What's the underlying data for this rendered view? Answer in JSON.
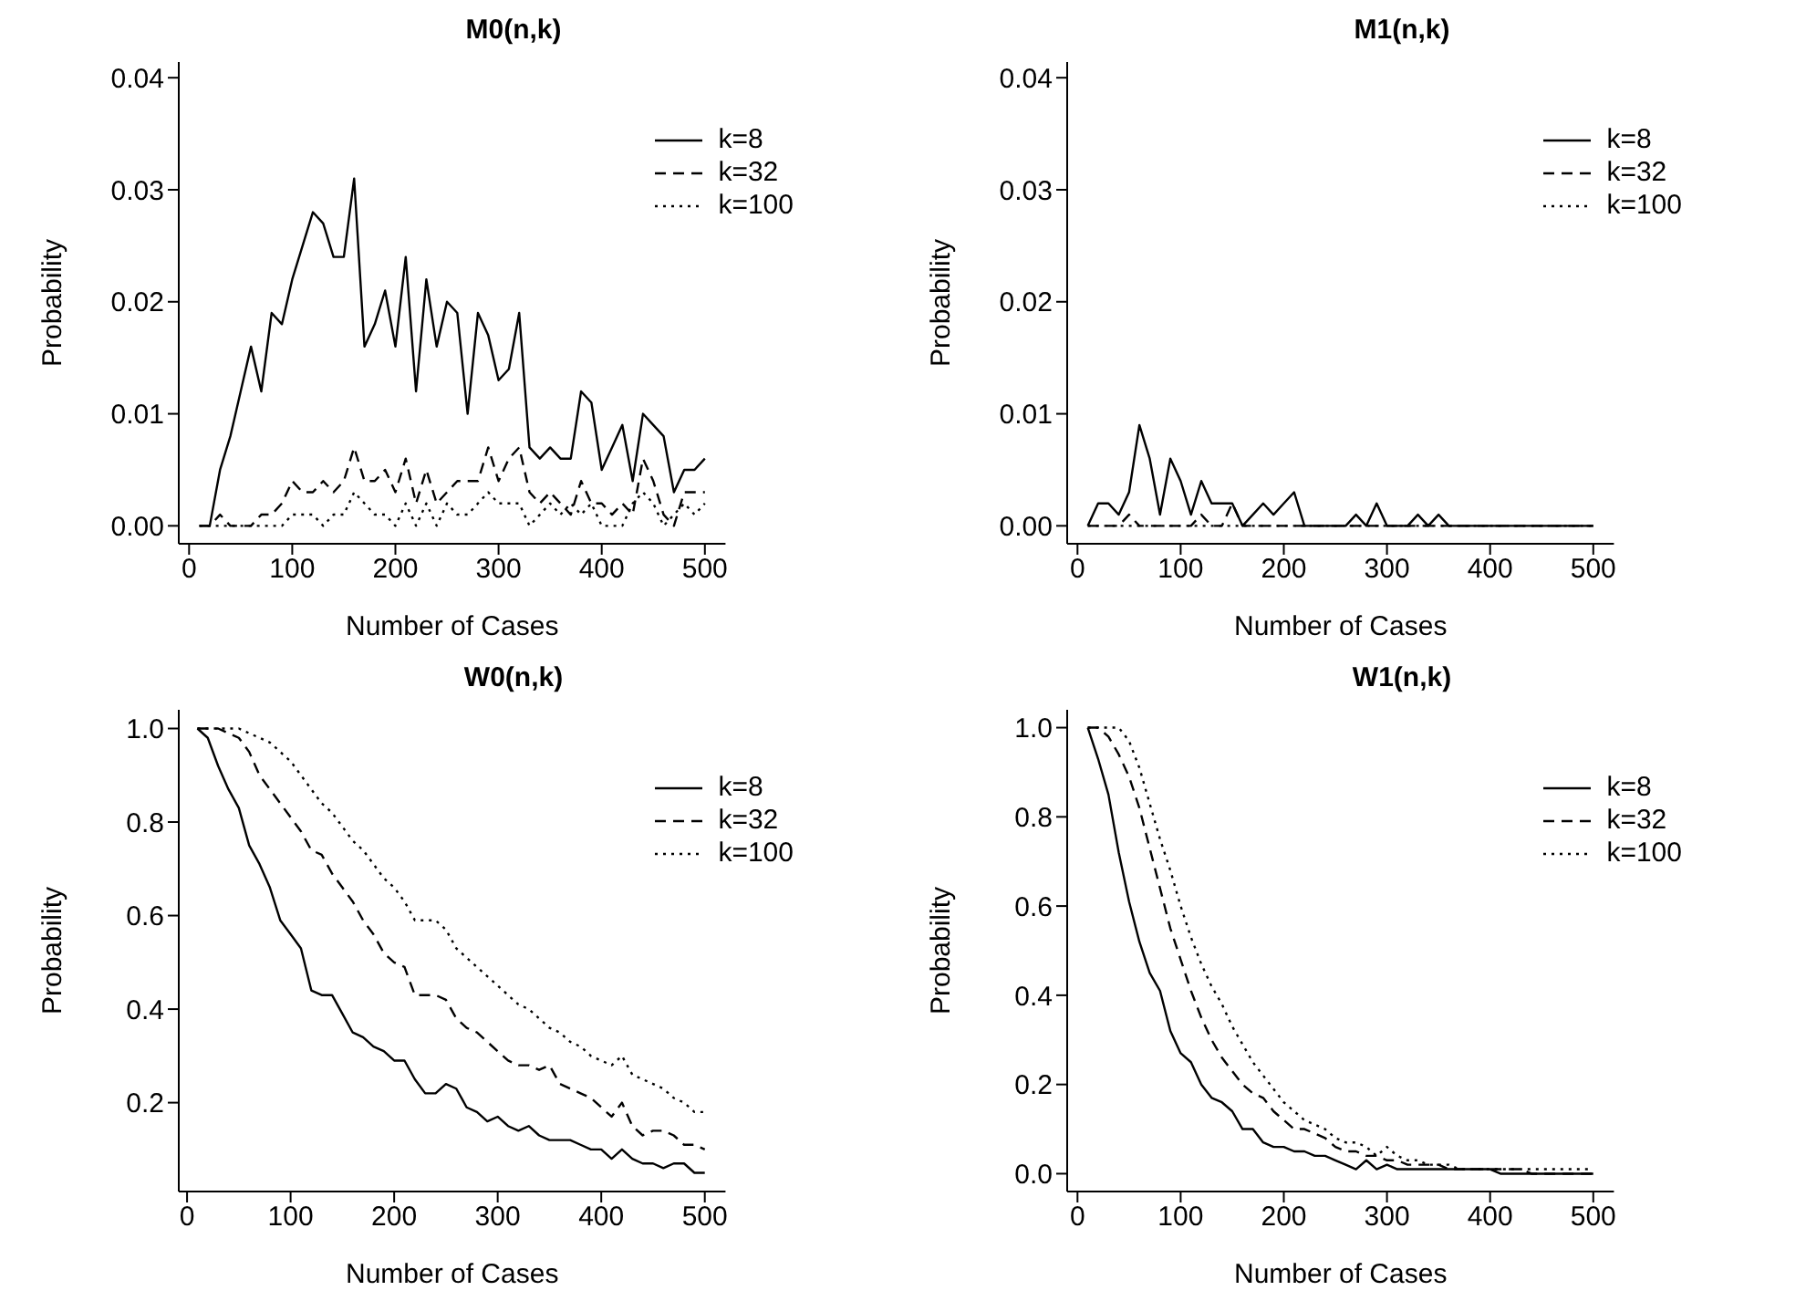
{
  "chart_data": [
    {
      "type": "line",
      "title": "M0(n,k)",
      "xlabel": "Number of Cases",
      "ylabel": "Probability",
      "x": [
        10,
        20,
        30,
        40,
        50,
        60,
        70,
        80,
        90,
        100,
        110,
        120,
        130,
        140,
        150,
        160,
        170,
        180,
        190,
        200,
        210,
        220,
        230,
        240,
        250,
        260,
        270,
        280,
        290,
        300,
        310,
        320,
        330,
        340,
        350,
        360,
        370,
        380,
        390,
        400,
        410,
        420,
        430,
        440,
        450,
        460,
        470,
        480,
        490,
        500
      ],
      "xlim": [
        -10,
        520
      ],
      "xticks": [
        0,
        100,
        200,
        300,
        400,
        500
      ],
      "ylim": [
        -0.0016,
        0.0414
      ],
      "yticks": [
        {
          "value": 0,
          "label": "0.00"
        },
        {
          "value": 0.01,
          "label": "0.01"
        },
        {
          "value": 0.02,
          "label": "0.02"
        },
        {
          "value": 0.03,
          "label": "0.03"
        },
        {
          "value": 0.04,
          "label": "0.04"
        }
      ],
      "grid": false,
      "legend": "top right",
      "marker": "none",
      "series": [
        {
          "name": "k=8",
          "color": "#000000",
          "line_style": "solid",
          "values": [
            0,
            0,
            0.005,
            0.008,
            0.012,
            0.016,
            0.012,
            0.019,
            0.018,
            0.022,
            0.025,
            0.028,
            0.027,
            0.024,
            0.024,
            0.031,
            0.016,
            0.018,
            0.021,
            0.016,
            0.024,
            0.012,
            0.022,
            0.016,
            0.02,
            0.019,
            0.01,
            0.019,
            0.017,
            0.013,
            0.014,
            0.019,
            0.007,
            0.006,
            0.007,
            0.006,
            0.006,
            0.012,
            0.011,
            0.005,
            0.007,
            0.009,
            0.004,
            0.01,
            0.009,
            0.008,
            0.003,
            0.005,
            0.005,
            0.006
          ]
        },
        {
          "name": "k=32",
          "color": "#000000",
          "line_style": "dashed",
          "values": [
            0,
            0,
            0.001,
            0,
            0,
            0,
            0.001,
            0.001,
            0.002,
            0.004,
            0.003,
            0.003,
            0.004,
            0.003,
            0.004,
            0.007,
            0.004,
            0.004,
            0.005,
            0.003,
            0.006,
            0.002,
            0.005,
            0.002,
            0.003,
            0.004,
            0.004,
            0.004,
            0.007,
            0.004,
            0.006,
            0.007,
            0.003,
            0.002,
            0.003,
            0.002,
            0.001,
            0.004,
            0.002,
            0.002,
            0.001,
            0.002,
            0.001,
            0.006,
            0.004,
            0.001,
            0,
            0.003,
            0.003,
            0.003
          ]
        },
        {
          "name": "k=100",
          "color": "#000000",
          "line_style": "dotted",
          "values": [
            0,
            0,
            0,
            0,
            0,
            0,
            0,
            0,
            0,
            0.001,
            0.001,
            0.001,
            0,
            0.001,
            0.001,
            0.003,
            0.002,
            0.001,
            0.001,
            0,
            0.002,
            0,
            0.002,
            0,
            0.002,
            0.001,
            0.001,
            0.002,
            0.003,
            0.002,
            0.002,
            0.002,
            0,
            0.001,
            0.002,
            0.001,
            0.002,
            0.001,
            0.002,
            0,
            0,
            0,
            0.002,
            0.003,
            0.002,
            0,
            0.001,
            0.002,
            0.001,
            0.002
          ]
        }
      ]
    },
    {
      "type": "line",
      "title": "M1(n,k)",
      "xlabel": "Number of Cases",
      "ylabel": "Probability",
      "x": [
        10,
        20,
        30,
        40,
        50,
        60,
        70,
        80,
        90,
        100,
        110,
        120,
        130,
        140,
        150,
        160,
        170,
        180,
        190,
        200,
        210,
        220,
        230,
        240,
        250,
        260,
        270,
        280,
        290,
        300,
        310,
        320,
        330,
        340,
        350,
        360,
        370,
        380,
        390,
        400,
        410,
        420,
        430,
        440,
        450,
        460,
        470,
        480,
        490,
        500
      ],
      "xlim": [
        -10,
        520
      ],
      "xticks": [
        0,
        100,
        200,
        300,
        400,
        500
      ],
      "ylim": [
        -0.0016,
        0.0414
      ],
      "yticks": [
        {
          "value": 0,
          "label": "0.00"
        },
        {
          "value": 0.01,
          "label": "0.01"
        },
        {
          "value": 0.02,
          "label": "0.02"
        },
        {
          "value": 0.03,
          "label": "0.03"
        },
        {
          "value": 0.04,
          "label": "0.04"
        }
      ],
      "grid": false,
      "legend": "top right",
      "marker": "none",
      "series": [
        {
          "name": "k=8",
          "color": "#000000",
          "line_style": "solid",
          "values": [
            0,
            0.002,
            0.002,
            0.001,
            0.003,
            0.009,
            0.006,
            0.001,
            0.006,
            0.004,
            0.001,
            0.004,
            0.002,
            0.002,
            0.002,
            0,
            0.001,
            0.002,
            0.001,
            0.002,
            0.003,
            0,
            0,
            0,
            0,
            0,
            0.001,
            0,
            0.002,
            0,
            0,
            0,
            0.001,
            0,
            0.001,
            0,
            0,
            0,
            0,
            0,
            0,
            0,
            0,
            0,
            0,
            0,
            0,
            0,
            0,
            0
          ]
        },
        {
          "name": "k=32",
          "color": "#000000",
          "line_style": "dashed",
          "values": [
            0,
            0,
            0,
            0,
            0.001,
            0,
            0,
            0,
            0,
            0,
            0,
            0.001,
            0,
            0,
            0.002,
            0,
            0,
            0,
            0,
            0,
            0,
            0,
            0,
            0,
            0,
            0,
            0,
            0,
            0,
            0,
            0,
            0,
            0,
            0,
            0,
            0,
            0,
            0,
            0,
            0,
            0,
            0,
            0,
            0,
            0,
            0,
            0,
            0,
            0,
            0
          ]
        },
        {
          "name": "k=100",
          "color": "#000000",
          "line_style": "dotted",
          "values": [
            0,
            0,
            0,
            0,
            0,
            0,
            0,
            0,
            0,
            0,
            0,
            0,
            0,
            0,
            0,
            0,
            0,
            0,
            0,
            0,
            0,
            0,
            0,
            0,
            0,
            0,
            0,
            0,
            0,
            0,
            0,
            0,
            0,
            0,
            0,
            0,
            0,
            0,
            0,
            0,
            0,
            0,
            0,
            0,
            0,
            0,
            0,
            0,
            0,
            0
          ]
        }
      ]
    },
    {
      "type": "line",
      "title": "W0(n,k)",
      "xlabel": "Number of Cases",
      "ylabel": "Probability",
      "x": [
        10,
        20,
        30,
        40,
        50,
        60,
        70,
        80,
        90,
        100,
        110,
        120,
        130,
        140,
        150,
        160,
        170,
        180,
        190,
        200,
        210,
        220,
        230,
        240,
        250,
        260,
        270,
        280,
        290,
        300,
        310,
        320,
        330,
        340,
        350,
        360,
        370,
        380,
        390,
        400,
        410,
        420,
        430,
        440,
        450,
        460,
        470,
        480,
        490,
        500
      ],
      "xlim": [
        -8,
        520
      ],
      "xticks": [
        0,
        100,
        200,
        300,
        400,
        500
      ],
      "ylim": [
        0.01,
        1.04
      ],
      "yticks": [
        0.2,
        0.4,
        0.6,
        0.8,
        {
          "value": 1,
          "label": "1.0"
        }
      ],
      "grid": false,
      "legend": "top right",
      "marker": "none",
      "series": [
        {
          "name": "k=8",
          "color": "#000000",
          "line_style": "solid",
          "values": [
            1.0,
            0.98,
            0.92,
            0.87,
            0.83,
            0.75,
            0.71,
            0.66,
            0.59,
            0.56,
            0.53,
            0.44,
            0.43,
            0.43,
            0.39,
            0.35,
            0.34,
            0.32,
            0.31,
            0.29,
            0.29,
            0.25,
            0.22,
            0.22,
            0.24,
            0.23,
            0.19,
            0.18,
            0.16,
            0.17,
            0.15,
            0.14,
            0.15,
            0.13,
            0.12,
            0.12,
            0.12,
            0.11,
            0.1,
            0.1,
            0.08,
            0.1,
            0.08,
            0.07,
            0.07,
            0.06,
            0.07,
            0.07,
            0.05,
            0.05
          ]
        },
        {
          "name": "k=32",
          "color": "#000000",
          "line_style": "dashed",
          "values": [
            1.0,
            1.0,
            1.0,
            0.99,
            0.98,
            0.95,
            0.9,
            0.87,
            0.84,
            0.81,
            0.78,
            0.74,
            0.73,
            0.69,
            0.66,
            0.63,
            0.59,
            0.56,
            0.52,
            0.5,
            0.49,
            0.43,
            0.43,
            0.43,
            0.42,
            0.38,
            0.36,
            0.35,
            0.33,
            0.31,
            0.29,
            0.28,
            0.28,
            0.27,
            0.28,
            0.24,
            0.23,
            0.22,
            0.21,
            0.19,
            0.17,
            0.2,
            0.15,
            0.13,
            0.14,
            0.14,
            0.13,
            0.11,
            0.11,
            0.1
          ]
        },
        {
          "name": "k=100",
          "color": "#000000",
          "line_style": "dotted",
          "values": [
            1.0,
            1.0,
            1.0,
            1.0,
            1.0,
            0.99,
            0.98,
            0.97,
            0.95,
            0.93,
            0.9,
            0.87,
            0.84,
            0.82,
            0.79,
            0.76,
            0.74,
            0.71,
            0.68,
            0.66,
            0.63,
            0.59,
            0.59,
            0.59,
            0.57,
            0.53,
            0.51,
            0.49,
            0.47,
            0.45,
            0.43,
            0.41,
            0.4,
            0.38,
            0.36,
            0.35,
            0.33,
            0.32,
            0.3,
            0.29,
            0.28,
            0.3,
            0.26,
            0.25,
            0.24,
            0.23,
            0.21,
            0.2,
            0.18,
            0.18
          ]
        }
      ]
    },
    {
      "type": "line",
      "title": "W1(n,k)",
      "xlabel": "Number of Cases",
      "ylabel": "Probability",
      "x": [
        10,
        20,
        30,
        40,
        50,
        60,
        70,
        80,
        90,
        100,
        110,
        120,
        130,
        140,
        150,
        160,
        170,
        180,
        190,
        200,
        210,
        220,
        230,
        240,
        250,
        260,
        270,
        280,
        290,
        300,
        310,
        320,
        330,
        340,
        350,
        360,
        370,
        380,
        390,
        400,
        410,
        420,
        430,
        440,
        450,
        460,
        470,
        480,
        490,
        500
      ],
      "xlim": [
        -10,
        520
      ],
      "xticks": [
        0,
        100,
        200,
        300,
        400,
        500
      ],
      "ylim": [
        -0.04,
        1.04
      ],
      "yticks": [
        {
          "value": 0,
          "label": "0.0"
        },
        0.2,
        0.4,
        0.6,
        0.8,
        {
          "value": 1,
          "label": "1.0"
        }
      ],
      "grid": false,
      "legend": "top right",
      "marker": "none",
      "series": [
        {
          "name": "k=8",
          "color": "#000000",
          "line_style": "solid",
          "values": [
            1.0,
            0.93,
            0.85,
            0.72,
            0.61,
            0.52,
            0.45,
            0.41,
            0.32,
            0.27,
            0.25,
            0.2,
            0.17,
            0.16,
            0.14,
            0.1,
            0.1,
            0.07,
            0.06,
            0.06,
            0.05,
            0.05,
            0.04,
            0.04,
            0.03,
            0.02,
            0.01,
            0.03,
            0.01,
            0.02,
            0.01,
            0.01,
            0.01,
            0.01,
            0.01,
            0.01,
            0.01,
            0.01,
            0.01,
            0.01,
            0,
            0,
            0,
            0,
            0,
            0,
            0,
            0,
            0,
            0
          ]
        },
        {
          "name": "k=32",
          "color": "#000000",
          "line_style": "dashed",
          "values": [
            1.0,
            1.0,
            0.98,
            0.94,
            0.89,
            0.82,
            0.73,
            0.64,
            0.55,
            0.48,
            0.41,
            0.35,
            0.3,
            0.26,
            0.23,
            0.2,
            0.18,
            0.17,
            0.14,
            0.12,
            0.1,
            0.1,
            0.09,
            0.08,
            0.06,
            0.05,
            0.05,
            0.04,
            0.04,
            0.03,
            0.03,
            0.02,
            0.02,
            0.02,
            0.02,
            0.01,
            0.01,
            0.01,
            0.01,
            0.01,
            0.01,
            0.01,
            0.01,
            0,
            0,
            0,
            0,
            0,
            0,
            0
          ]
        },
        {
          "name": "k=100",
          "color": "#000000",
          "line_style": "dotted",
          "values": [
            1.0,
            1.0,
            1.0,
            1.0,
            0.97,
            0.91,
            0.83,
            0.75,
            0.68,
            0.6,
            0.53,
            0.47,
            0.42,
            0.38,
            0.33,
            0.29,
            0.25,
            0.22,
            0.19,
            0.16,
            0.14,
            0.12,
            0.11,
            0.1,
            0.08,
            0.07,
            0.07,
            0.06,
            0.04,
            0.06,
            0.04,
            0.03,
            0.03,
            0.02,
            0.02,
            0.02,
            0.01,
            0.01,
            0.01,
            0.01,
            0.01,
            0.01,
            0.01,
            0.01,
            0.01,
            0.01,
            0.01,
            0.01,
            0.01,
            0.01
          ]
        }
      ]
    }
  ]
}
